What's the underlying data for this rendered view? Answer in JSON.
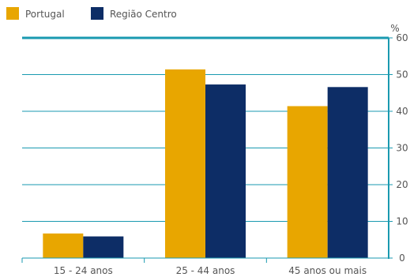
{
  "chart_data": {
    "type": "bar",
    "categories": [
      "15 - 24 anos",
      "25 - 44 anos",
      "45 anos ou mais"
    ],
    "series": [
      {
        "name": "Portugal",
        "values": [
          6.7,
          51.4,
          41.4
        ],
        "color": "#E8A600"
      },
      {
        "name": "Região Centro",
        "values": [
          5.9,
          47.3,
          46.6
        ],
        "color": "#0D2D66"
      }
    ],
    "ylabel": "%",
    "ylim": [
      0,
      60
    ],
    "yticks": [
      0,
      10,
      20,
      30,
      40,
      50,
      60
    ],
    "y_axis_side": "right",
    "grid": true,
    "legend_position": "top-left",
    "axis_color": "#1A9AB0"
  }
}
